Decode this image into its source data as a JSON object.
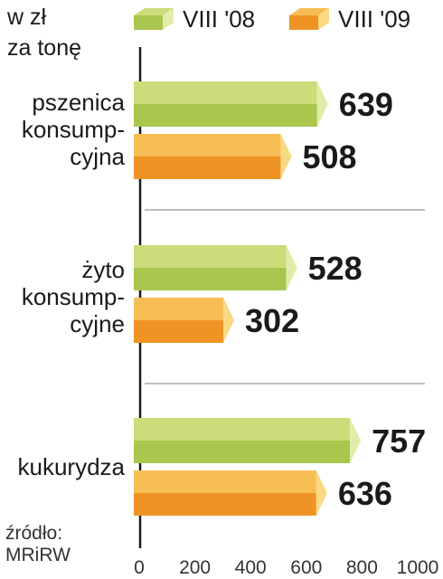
{
  "unit_label": [
    "w zł",
    "za tonę"
  ],
  "source_label": [
    "źródło:",
    "MRiRW"
  ],
  "colors": {
    "series_1_top": "#cddc7a",
    "series_1_front": "#a9c64e",
    "series_1_end": "#e2eca8",
    "series_2_top": "#f7bd55",
    "series_2_front": "#ef9424",
    "series_2_end": "#fad985",
    "axis": "#1a1a1a",
    "separator": "#999999"
  },
  "chart_data": {
    "type": "bar",
    "orientation": "horizontal",
    "unit": "w zł za tonę",
    "categories": [
      "pszenica konsumpcyjna",
      "żyto konsumpcyjne",
      "kukurydza"
    ],
    "category_lines": [
      [
        "pszenica",
        "konsump-",
        "cyjna"
      ],
      [
        "żyto",
        "konsump-",
        "cyjne"
      ],
      [
        "kukurydza"
      ]
    ],
    "series": [
      {
        "name": "VIII '08",
        "values": [
          639,
          528,
          757
        ]
      },
      {
        "name": "VIII '09",
        "values": [
          508,
          302,
          636
        ]
      }
    ],
    "value_labels": [
      [
        "639",
        "508"
      ],
      [
        "528",
        "302"
      ],
      [
        "757",
        "636"
      ]
    ],
    "xlim": [
      0,
      1000
    ],
    "x_ticks": [
      "0",
      "200",
      "400",
      "600",
      "800",
      "1000"
    ],
    "legend_position": "top",
    "grid": false
  }
}
